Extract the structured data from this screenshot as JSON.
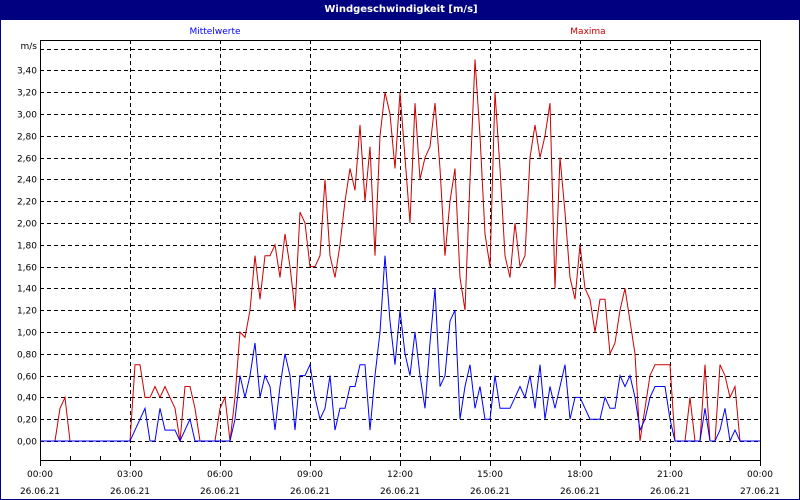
{
  "window": {
    "title": "Windgeschwindigkeit [m/s]"
  },
  "chart_data": {
    "type": "line",
    "title": "Windgeschwindigkeit [m/s]",
    "ylabel": "m/s",
    "ylim": [
      0,
      3.6
    ],
    "yticks": [
      "0,00",
      "0,20",
      "0,40",
      "0,60",
      "0,80",
      "1,00",
      "1,20",
      "1,40",
      "1,60",
      "1,80",
      "2,00",
      "2,20",
      "2,40",
      "2,60",
      "2,80",
      "3,00",
      "3,20",
      "3,40"
    ],
    "xticks": [
      {
        "time": "00:00",
        "date": "26.06.21"
      },
      {
        "time": "03:00",
        "date": "26.06.21"
      },
      {
        "time": "06:00",
        "date": "26.06.21"
      },
      {
        "time": "09:00",
        "date": "26.06.21"
      },
      {
        "time": "12:00",
        "date": "26.06.21"
      },
      {
        "time": "15:00",
        "date": "26.06.21"
      },
      {
        "time": "18:00",
        "date": "26.06.21"
      },
      {
        "time": "21:00",
        "date": "26.06.21"
      },
      {
        "time": "00:00",
        "date": "27.06.21"
      }
    ],
    "xlim": [
      "26.06.21 00:00",
      "27.06.21 00:00"
    ],
    "grid": true,
    "x": [
      "00:00",
      "00:10",
      "00:20",
      "00:30",
      "00:40",
      "00:50",
      "01:00",
      "01:10",
      "01:20",
      "01:30",
      "01:40",
      "01:50",
      "02:00",
      "02:10",
      "02:20",
      "02:30",
      "02:40",
      "02:50",
      "03:00",
      "03:10",
      "03:20",
      "03:30",
      "03:40",
      "03:50",
      "04:00",
      "04:10",
      "04:20",
      "04:30",
      "04:40",
      "04:50",
      "05:00",
      "05:10",
      "05:20",
      "05:30",
      "05:40",
      "05:50",
      "06:00",
      "06:10",
      "06:20",
      "06:30",
      "06:40",
      "06:50",
      "07:00",
      "07:10",
      "07:20",
      "07:30",
      "07:40",
      "07:50",
      "08:00",
      "08:10",
      "08:20",
      "08:30",
      "08:40",
      "08:50",
      "09:00",
      "09:10",
      "09:20",
      "09:30",
      "09:40",
      "09:50",
      "10:00",
      "10:10",
      "10:20",
      "10:30",
      "10:40",
      "10:50",
      "11:00",
      "11:10",
      "11:20",
      "11:30",
      "11:40",
      "11:50",
      "12:00",
      "12:10",
      "12:20",
      "12:30",
      "12:40",
      "12:50",
      "13:00",
      "13:10",
      "13:20",
      "13:30",
      "13:40",
      "13:50",
      "14:00",
      "14:10",
      "14:20",
      "14:30",
      "14:40",
      "14:50",
      "15:00",
      "15:10",
      "15:20",
      "15:30",
      "15:40",
      "15:50",
      "16:00",
      "16:10",
      "16:20",
      "16:30",
      "16:40",
      "16:50",
      "17:00",
      "17:10",
      "17:20",
      "17:30",
      "17:40",
      "17:50",
      "18:00",
      "18:10",
      "18:20",
      "18:30",
      "18:40",
      "18:50",
      "19:00",
      "19:10",
      "19:20",
      "19:30",
      "19:40",
      "19:50",
      "20:00",
      "20:10",
      "20:20",
      "20:30",
      "20:40",
      "20:50",
      "21:00",
      "21:10",
      "21:20",
      "21:30",
      "21:40",
      "21:50",
      "22:00",
      "22:10",
      "22:20",
      "22:30",
      "22:40",
      "22:50",
      "23:00",
      "23:10",
      "23:20",
      "23:30",
      "23:40",
      "23:50",
      "24:00"
    ],
    "series": [
      {
        "name": "Mittelwerte",
        "color": "#0000ff",
        "values": [
          0,
          0,
          0,
          0,
          0,
          0,
          0,
          0,
          0,
          0,
          0,
          0,
          0,
          0,
          0,
          0,
          0,
          0,
          0,
          0.1,
          0.2,
          0.3,
          0,
          0,
          0.3,
          0.1,
          0.1,
          0.1,
          0,
          0.1,
          0.2,
          0,
          0,
          0,
          0,
          0,
          0,
          0,
          0,
          0.2,
          0.6,
          0.4,
          0.6,
          0.9,
          0.4,
          0.6,
          0.5,
          0.1,
          0.5,
          0.8,
          0.6,
          0.1,
          0.6,
          0.6,
          0.7,
          0.4,
          0.2,
          0.3,
          0.6,
          0.1,
          0.3,
          0.3,
          0.5,
          0.5,
          0.7,
          0.7,
          0.1,
          0.6,
          1.0,
          1.7,
          1.1,
          0.7,
          1.2,
          0.8,
          0.6,
          1.0,
          0.6,
          0.3,
          0.9,
          1.4,
          0.5,
          0.6,
          1.1,
          1.2,
          0.2,
          0.5,
          0.7,
          0.3,
          0.5,
          0.2,
          0.2,
          0.6,
          0.3,
          0.3,
          0.3,
          0.4,
          0.5,
          0.4,
          0.6,
          0.3,
          0.7,
          0.2,
          0.5,
          0.3,
          0.5,
          0.7,
          0.2,
          0.4,
          0.4,
          0.3,
          0.2,
          0.2,
          0.2,
          0.4,
          0.3,
          0.3,
          0.6,
          0.5,
          0.6,
          0.4,
          0.1,
          0.2,
          0.4,
          0.5,
          0.5,
          0.5,
          0.2,
          0,
          0,
          0,
          0,
          0,
          0,
          0.3,
          0,
          0,
          0.1,
          0.3,
          0,
          0.1,
          0,
          0,
          0,
          0,
          0
        ]
      },
      {
        "name": "Maxima",
        "color": "#cc0000",
        "values": [
          0,
          0,
          0,
          0,
          0.3,
          0.4,
          0,
          0,
          0,
          0,
          0,
          0,
          0,
          0,
          0,
          0,
          0,
          0,
          0,
          0.7,
          0.7,
          0.4,
          0.4,
          0.5,
          0.4,
          0.5,
          0.4,
          0.3,
          0,
          0.5,
          0.5,
          0.3,
          0,
          0,
          0,
          0,
          0.3,
          0.4,
          0,
          0.4,
          1.0,
          0.95,
          1.2,
          1.7,
          1.3,
          1.7,
          1.7,
          1.8,
          1.5,
          1.9,
          1.6,
          1.2,
          2.1,
          2.0,
          1.6,
          1.6,
          1.7,
          2.4,
          1.7,
          1.5,
          1.8,
          2.2,
          2.5,
          2.3,
          2.9,
          2.2,
          2.7,
          1.7,
          2.8,
          3.2,
          3.0,
          2.5,
          3.2,
          2.6,
          2.0,
          3.1,
          2.4,
          2.6,
          2.7,
          3.1,
          2.5,
          1.7,
          2.2,
          2.5,
          1.5,
          1.2,
          2.4,
          3.5,
          2.8,
          1.9,
          1.6,
          3.2,
          2.5,
          1.7,
          1.5,
          2.0,
          1.6,
          1.7,
          2.6,
          2.9,
          2.6,
          2.8,
          3.1,
          1.4,
          2.6,
          2.1,
          1.5,
          1.3,
          1.8,
          1.4,
          1.3,
          1.0,
          1.3,
          1.3,
          0.8,
          0.9,
          1.2,
          1.4,
          1.1,
          0.8,
          0,
          0.3,
          0.6,
          0.7,
          0.7,
          0.7,
          0.7,
          0,
          0,
          0,
          0.4,
          0,
          0,
          0.7,
          0,
          0,
          0.7,
          0.6,
          0.4,
          0.5,
          0,
          0,
          0,
          0,
          0
        ]
      }
    ]
  }
}
